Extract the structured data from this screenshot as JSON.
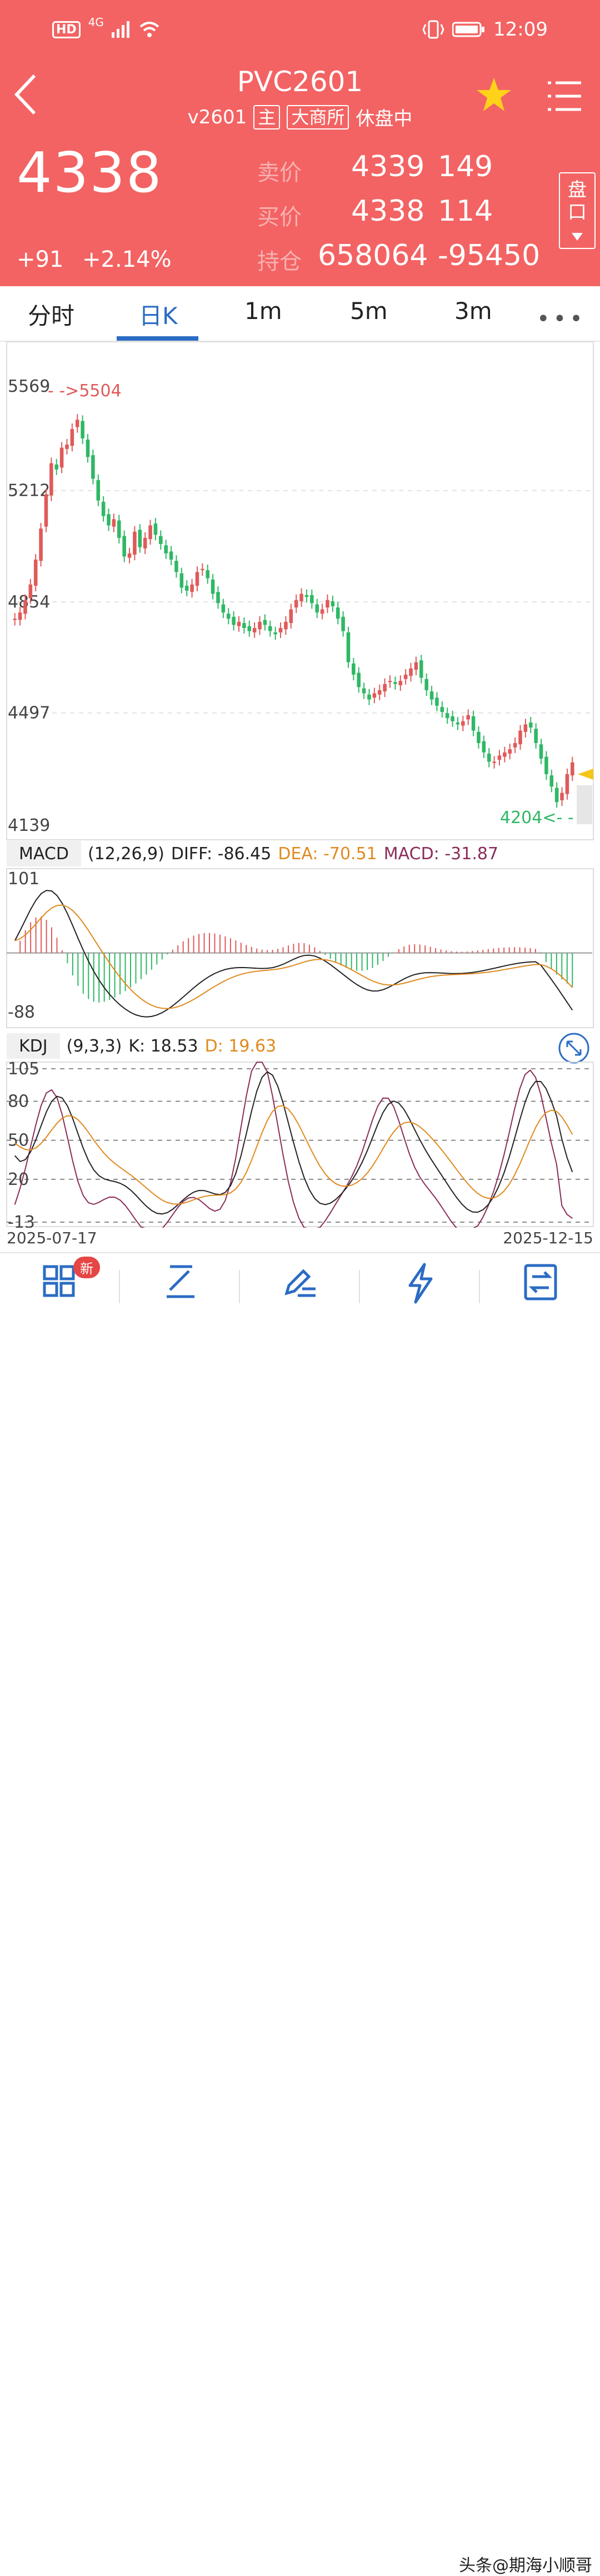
{
  "status_bar": {
    "time": "12:09",
    "network": "4G",
    "hd": "HD"
  },
  "header": {
    "title": "PVC2601",
    "contract": "v2601",
    "tag_main": "主",
    "exchange": "大商所",
    "session_status": "休盘中",
    "last_price": "4338",
    "change": "+91",
    "change_pct": "+2.14%",
    "ask_label": "卖价",
    "ask_price": "4339",
    "ask_vol": "149",
    "bid_label": "买价",
    "bid_price": "4338",
    "bid_vol": "114",
    "oi_label": "持仓",
    "open_interest": "658064",
    "oi_change": "-95450",
    "pankou_line1": "盘",
    "pankou_line2": "口"
  },
  "tabs": [
    {
      "label": "分时",
      "active": false
    },
    {
      "label": "日K",
      "active": true
    },
    {
      "label": "1m",
      "active": false
    },
    {
      "label": "5m",
      "active": false
    },
    {
      "label": "3m",
      "active": false
    }
  ],
  "chart_data": [
    {
      "type": "candlestick",
      "y_ticks": [
        "5569",
        "5212",
        "4854",
        "4497",
        "4139"
      ],
      "ylim": [
        4139,
        5569
      ],
      "high_marker": "- ->5504",
      "low_marker": "4204<- -",
      "x_start": "2025-07-17",
      "x_end": "2025-12-15",
      "colors": {
        "up": "#e05a5a",
        "down": "#2fb865"
      },
      "closes": [
        4800,
        4820,
        4860,
        4910,
        4990,
        5090,
        5200,
        5300,
        5280,
        5350,
        5360,
        5410,
        5440,
        5380,
        5320,
        5250,
        5180,
        5130,
        5100,
        5120,
        5060,
        5000,
        5010,
        5080,
        5030,
        5060,
        5100,
        5070,
        5040,
        5010,
        4990,
        4950,
        4900,
        4890,
        4910,
        4950,
        4960,
        4930,
        4880,
        4850,
        4820,
        4800,
        4780,
        4790,
        4770,
        4760,
        4770,
        4790,
        4780,
        4760,
        4750,
        4770,
        4790,
        4830,
        4860,
        4880,
        4870,
        4850,
        4820,
        4830,
        4860,
        4840,
        4800,
        4760,
        4660,
        4620,
        4580,
        4560,
        4540,
        4560,
        4570,
        4590,
        4600,
        4590,
        4600,
        4620,
        4640,
        4660,
        4610,
        4570,
        4540,
        4520,
        4500,
        4480,
        4470,
        4460,
        4470,
        4490,
        4440,
        4400,
        4370,
        4340,
        4340,
        4360,
        4370,
        4380,
        4400,
        4440,
        4460,
        4450,
        4400,
        4350,
        4300,
        4260,
        4210,
        4240,
        4300,
        4338
      ]
    },
    {
      "type": "macd",
      "name": "MACD",
      "params": "(12,26,9)",
      "diff_label": "DIFF: -86.45",
      "dea_label": "DEA: -70.51",
      "macd_label": "MACD: -31.87",
      "y_ticks": [
        "101",
        "-88"
      ],
      "ylim": [
        -88,
        101
      ],
      "colors": {
        "diff": "#222222",
        "dea": "#e08a1e",
        "macd": "#8b2c5a",
        "pos": "#e05a5a",
        "neg": "#2fb865"
      }
    },
    {
      "type": "kdj",
      "name": "KDJ",
      "params": "(9,3,3)",
      "k_label": "K: 18.53",
      "d_label": "D: 19.63",
      "y_ticks": [
        "105",
        "80",
        "50",
        "20",
        "-13"
      ],
      "ylim": [
        -13,
        105
      ],
      "colors": {
        "k": "#222222",
        "d": "#e08a1e",
        "j": "#8b2c5a"
      }
    }
  ],
  "footer": {
    "badge": "新",
    "watermark": "头条@期海小顺哥"
  }
}
